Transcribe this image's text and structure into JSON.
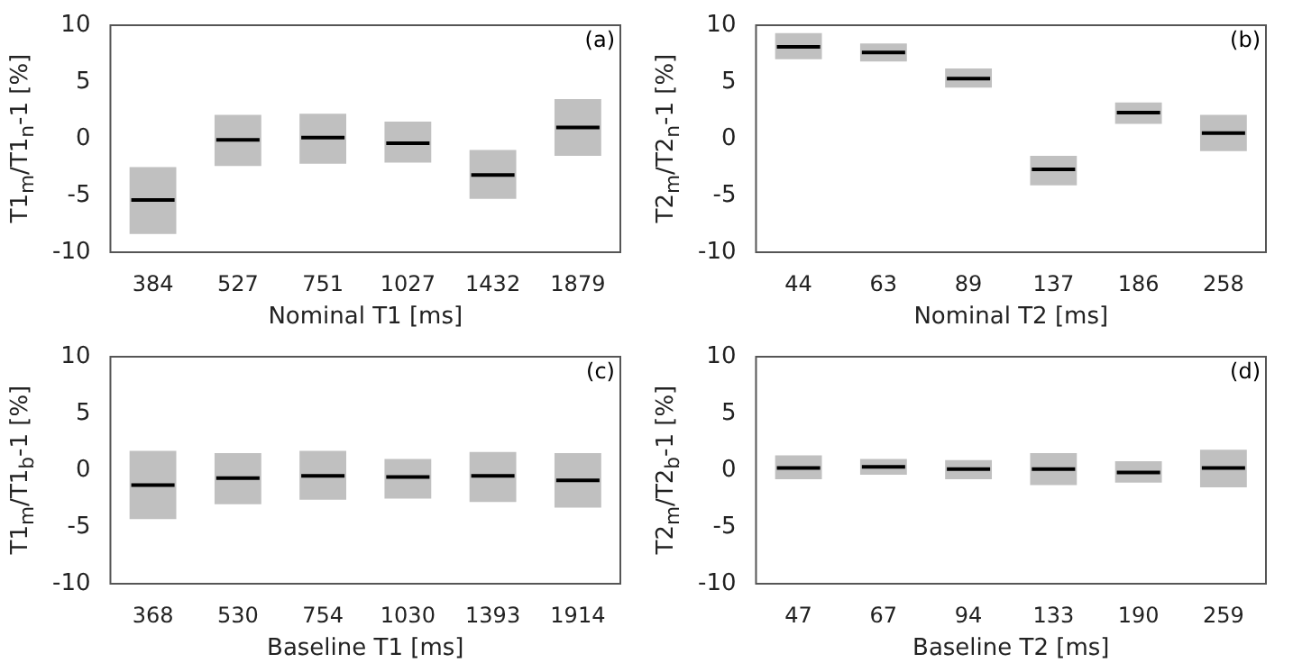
{
  "chart_data": [
    {
      "type": "box",
      "categories": [
        "384",
        "527",
        "751",
        "1027",
        "1432",
        "1879"
      ],
      "color": "#c0c0c0",
      "xlabel": "Nominal T1 [ms]",
      "ylabel": "T1$_{m}$/T1$_{n}$-1 [%]",
      "ylim": [
        -10,
        10
      ],
      "yticks": [
        -10,
        -5,
        0,
        5,
        10
      ],
      "annotations": [
        "(a)"
      ],
      "boxes": [
        {
          "low": -8.4,
          "q1": -8.4,
          "median": -5.4,
          "q3": -2.5,
          "high": -2.5
        },
        {
          "low": -2.4,
          "q1": -2.4,
          "median": -0.1,
          "q3": 2.1,
          "high": 2.1
        },
        {
          "low": -2.2,
          "q1": -2.2,
          "median": 0.1,
          "q3": 2.2,
          "high": 2.2
        },
        {
          "low": -2.1,
          "q1": -2.1,
          "median": -0.4,
          "q3": 1.5,
          "high": 1.5
        },
        {
          "low": -5.3,
          "q1": -5.3,
          "median": -3.2,
          "q3": -1.0,
          "high": -1.0
        },
        {
          "low": -1.5,
          "q1": -1.5,
          "median": 1.0,
          "q3": 3.5,
          "high": 3.5
        }
      ]
    },
    {
      "type": "box",
      "categories": [
        "44",
        "63",
        "89",
        "137",
        "186",
        "258"
      ],
      "color": "#c0c0c0",
      "xlabel": "Nominal T2 [ms]",
      "ylabel": "T2$_{m}$/T2$_{n}$-1 [%]",
      "ylim": [
        -10,
        10
      ],
      "yticks": [
        -10,
        -5,
        0,
        5,
        10
      ],
      "annotations": [
        "(b)"
      ],
      "boxes": [
        {
          "low": 7.0,
          "q1": 7.0,
          "median": 8.1,
          "q3": 9.3,
          "high": 9.3
        },
        {
          "low": 6.8,
          "q1": 6.8,
          "median": 7.6,
          "q3": 8.4,
          "high": 8.4
        },
        {
          "low": 4.5,
          "q1": 4.5,
          "median": 5.3,
          "q3": 6.2,
          "high": 6.2
        },
        {
          "low": -4.1,
          "q1": -4.1,
          "median": -2.7,
          "q3": -1.5,
          "high": -1.5
        },
        {
          "low": 1.3,
          "q1": 1.3,
          "median": 2.3,
          "q3": 3.2,
          "high": 3.2
        },
        {
          "low": -1.1,
          "q1": -1.1,
          "median": 0.5,
          "q3": 2.1,
          "high": 2.1
        }
      ]
    },
    {
      "type": "box",
      "categories": [
        "368",
        "530",
        "754",
        "1030",
        "1393",
        "1914"
      ],
      "color": "#c0c0c0",
      "xlabel": "Baseline T1 [ms]",
      "ylabel": "T1$_{m}$/T1$_{b}$-1 [%]",
      "ylim": [
        -10,
        10
      ],
      "yticks": [
        -10,
        -5,
        0,
        5,
        10
      ],
      "annotations": [
        "(c)"
      ],
      "boxes": [
        {
          "low": -4.3,
          "q1": -4.3,
          "median": -1.3,
          "q3": 1.7,
          "high": 1.7
        },
        {
          "low": -3.0,
          "q1": -3.0,
          "median": -0.7,
          "q3": 1.5,
          "high": 1.5
        },
        {
          "low": -2.6,
          "q1": -2.6,
          "median": -0.5,
          "q3": 1.7,
          "high": 1.7
        },
        {
          "low": -2.5,
          "q1": -2.5,
          "median": -0.6,
          "q3": 1.0,
          "high": 1.0
        },
        {
          "low": -2.8,
          "q1": -2.8,
          "median": -0.5,
          "q3": 1.6,
          "high": 1.6
        },
        {
          "low": -3.3,
          "q1": -3.3,
          "median": -0.9,
          "q3": 1.5,
          "high": 1.5
        }
      ]
    },
    {
      "type": "box",
      "categories": [
        "47",
        "67",
        "94",
        "133",
        "190",
        "259"
      ],
      "color": "#c0c0c0",
      "xlabel": "Baseline T2 [ms]",
      "ylabel": "T2$_{m}$/T2$_{b}$-1 [%]",
      "ylim": [
        -10,
        10
      ],
      "yticks": [
        -10,
        -5,
        0,
        5,
        10
      ],
      "annotations": [
        "(d)"
      ],
      "boxes": [
        {
          "low": -0.8,
          "q1": -0.8,
          "median": 0.2,
          "q3": 1.3,
          "high": 1.3
        },
        {
          "low": -0.4,
          "q1": -0.4,
          "median": 0.3,
          "q3": 1.0,
          "high": 1.0
        },
        {
          "low": -0.8,
          "q1": -0.8,
          "median": 0.1,
          "q3": 0.9,
          "high": 0.9
        },
        {
          "low": -1.3,
          "q1": -1.3,
          "median": 0.1,
          "q3": 1.5,
          "high": 1.5
        },
        {
          "low": -1.1,
          "q1": -1.1,
          "median": -0.2,
          "q3": 0.8,
          "high": 0.8
        },
        {
          "low": -1.5,
          "q1": -1.5,
          "median": 0.2,
          "q3": 1.8,
          "high": 1.8
        }
      ]
    }
  ]
}
